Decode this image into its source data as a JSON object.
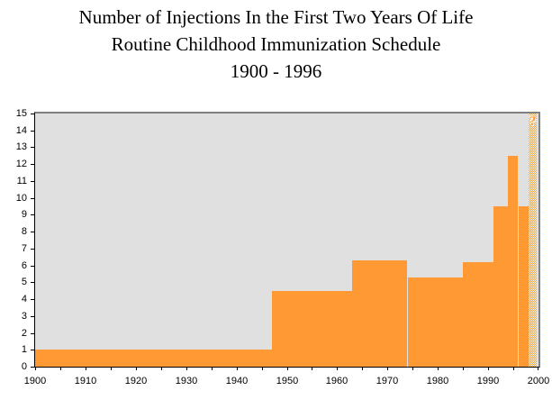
{
  "title": {
    "line1": "Number of Injections In the First Two Years Of Life",
    "line2": "Routine Childhood Immunization Schedule",
    "line3": "1900 - 1996"
  },
  "colors": {
    "area": "#ff9933",
    "plot_background": "#e0e0e0",
    "plot_border": "#808080",
    "axis": "#000000"
  },
  "chart_data": {
    "type": "area",
    "title": "Number of Injections In the First Two Years Of Life - Routine Childhood Immunization Schedule - 1900 - 1996",
    "xlabel": "",
    "ylabel": "",
    "xlim": [
      1900,
      2000
    ],
    "ylim": [
      0,
      15
    ],
    "grid": false,
    "legend": null,
    "x_major_tick_step": 10,
    "x_minor_tick_step": 5,
    "y_tick_step": 1,
    "x_tick_labels": [
      "1900",
      "1910",
      "1920",
      "1930",
      "1940",
      "1950",
      "1960",
      "1970",
      "1980",
      "1990",
      "2000"
    ],
    "y_tick_labels": [
      "0",
      "1",
      "2",
      "3",
      "4",
      "5",
      "6",
      "7",
      "8",
      "9",
      "10",
      "11",
      "12",
      "13",
      "14",
      "15"
    ],
    "steps": [
      {
        "from_year": 1900,
        "to_year": 1947,
        "injections": 1
      },
      {
        "from_year": 1947,
        "to_year": 1963,
        "injections": 4.5
      },
      {
        "from_year": 1963,
        "to_year": 1974,
        "injections": 6.3
      },
      {
        "from_year": 1974,
        "to_year": 1985,
        "injections": 5.3
      },
      {
        "from_year": 1985,
        "to_year": 1991,
        "injections": 6.2
      },
      {
        "from_year": 1991,
        "to_year": 1994,
        "injections": 9.5
      },
      {
        "from_year": 1994,
        "to_year": 1996,
        "injections": 12.5
      },
      {
        "from_year": 1996,
        "to_year": 1998,
        "injections": 9.5
      }
    ],
    "future_bar": {
      "from_year": 1998,
      "to_year": 2000,
      "value": 15,
      "style": "hatched-checkerboard",
      "annotation": "?"
    }
  }
}
